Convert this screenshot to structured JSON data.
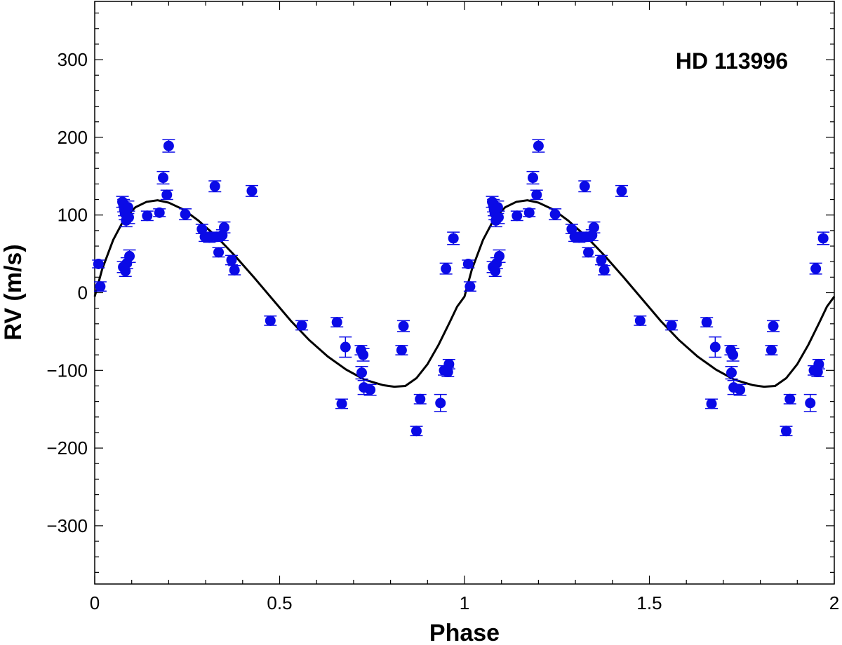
{
  "chart_data": {
    "type": "scatter",
    "annotation": "HD 113996",
    "xlabel": "Phase",
    "ylabel": "RV (m/s)",
    "xlim": [
      0,
      2
    ],
    "ylim": [
      -375,
      375
    ],
    "xticks": [
      0,
      0.5,
      1,
      1.5,
      2
    ],
    "xtick_labels": [
      "0",
      "0.5",
      "1",
      "1.5",
      "2"
    ],
    "yticks": [
      -300,
      -200,
      -100,
      0,
      100,
      200,
      300
    ],
    "ytick_labels": [
      "−300",
      "−200",
      "−100",
      "0",
      "100",
      "200",
      "300"
    ],
    "grid": false,
    "legend": "none",
    "colors": {
      "points": "#0a0ae6",
      "errorbars": "#0a0ae6",
      "model": "#000000"
    },
    "series": [
      {
        "kind": "observations",
        "points": [
          {
            "x": 0.01,
            "y": 37,
            "err": 5
          },
          {
            "x": 0.015,
            "y": 8,
            "err": 6
          },
          {
            "x": 0.075,
            "y": 117,
            "err": 7
          },
          {
            "x": 0.078,
            "y": 112,
            "err": 8
          },
          {
            "x": 0.08,
            "y": 107,
            "err": 8
          },
          {
            "x": 0.082,
            "y": 102,
            "err": 8
          },
          {
            "x": 0.085,
            "y": 93,
            "err": 8
          },
          {
            "x": 0.087,
            "y": 38,
            "err": 7
          },
          {
            "x": 0.077,
            "y": 33,
            "err": 7
          },
          {
            "x": 0.083,
            "y": 28,
            "err": 7
          },
          {
            "x": 0.09,
            "y": 110,
            "err": 8
          },
          {
            "x": 0.092,
            "y": 97,
            "err": 8
          },
          {
            "x": 0.094,
            "y": 47,
            "err": 8
          },
          {
            "x": 0.142,
            "y": 99,
            "err": 6
          },
          {
            "x": 0.175,
            "y": 103,
            "err": 5
          },
          {
            "x": 0.185,
            "y": 148,
            "err": 8
          },
          {
            "x": 0.195,
            "y": 126,
            "err": 6
          },
          {
            "x": 0.2,
            "y": 189,
            "err": 8
          },
          {
            "x": 0.245,
            "y": 101,
            "err": 7
          },
          {
            "x": 0.29,
            "y": 82,
            "err": 6
          },
          {
            "x": 0.298,
            "y": 72,
            "err": 6
          },
          {
            "x": 0.31,
            "y": 71,
            "err": 6
          },
          {
            "x": 0.325,
            "y": 137,
            "err": 7
          },
          {
            "x": 0.33,
            "y": 72,
            "err": 6
          },
          {
            "x": 0.335,
            "y": 52,
            "err": 6
          },
          {
            "x": 0.345,
            "y": 74,
            "err": 7
          },
          {
            "x": 0.35,
            "y": 84,
            "err": 7
          },
          {
            "x": 0.37,
            "y": 42,
            "err": 6
          },
          {
            "x": 0.378,
            "y": 29,
            "err": 6
          },
          {
            "x": 0.425,
            "y": 131,
            "err": 7
          },
          {
            "x": 0.475,
            "y": -36,
            "err": 6
          },
          {
            "x": 0.56,
            "y": -42,
            "err": 6
          },
          {
            "x": 0.655,
            "y": -38,
            "err": 6
          },
          {
            "x": 0.668,
            "y": -143,
            "err": 6
          },
          {
            "x": 0.678,
            "y": -70,
            "err": 13
          },
          {
            "x": 0.72,
            "y": -74,
            "err": 6
          },
          {
            "x": 0.722,
            "y": -103,
            "err": 8
          },
          {
            "x": 0.726,
            "y": -80,
            "err": 8
          },
          {
            "x": 0.728,
            "y": -122,
            "err": 9
          },
          {
            "x": 0.745,
            "y": -125,
            "err": 7
          },
          {
            "x": 0.83,
            "y": -74,
            "err": 6
          },
          {
            "x": 0.835,
            "y": -43,
            "err": 7
          },
          {
            "x": 0.87,
            "y": -178,
            "err": 6
          },
          {
            "x": 0.88,
            "y": -137,
            "err": 6
          },
          {
            "x": 0.935,
            "y": -142,
            "err": 11
          },
          {
            "x": 0.945,
            "y": -100,
            "err": 6
          },
          {
            "x": 0.95,
            "y": 31,
            "err": 7
          },
          {
            "x": 0.955,
            "y": -102,
            "err": 6
          },
          {
            "x": 0.958,
            "y": -92,
            "err": 6
          },
          {
            "x": 0.97,
            "y": 70,
            "err": 8
          },
          {
            "x": 1.01,
            "y": 37,
            "err": 5
          },
          {
            "x": 1.015,
            "y": 8,
            "err": 6
          },
          {
            "x": 1.075,
            "y": 117,
            "err": 7
          },
          {
            "x": 1.078,
            "y": 112,
            "err": 8
          },
          {
            "x": 1.08,
            "y": 107,
            "err": 8
          },
          {
            "x": 1.082,
            "y": 102,
            "err": 8
          },
          {
            "x": 1.085,
            "y": 93,
            "err": 8
          },
          {
            "x": 1.087,
            "y": 38,
            "err": 7
          },
          {
            "x": 1.077,
            "y": 33,
            "err": 7
          },
          {
            "x": 1.083,
            "y": 28,
            "err": 7
          },
          {
            "x": 1.09,
            "y": 110,
            "err": 8
          },
          {
            "x": 1.092,
            "y": 97,
            "err": 8
          },
          {
            "x": 1.094,
            "y": 47,
            "err": 8
          },
          {
            "x": 1.142,
            "y": 99,
            "err": 6
          },
          {
            "x": 1.175,
            "y": 103,
            "err": 5
          },
          {
            "x": 1.185,
            "y": 148,
            "err": 8
          },
          {
            "x": 1.195,
            "y": 126,
            "err": 6
          },
          {
            "x": 1.2,
            "y": 189,
            "err": 8
          },
          {
            "x": 1.245,
            "y": 101,
            "err": 7
          },
          {
            "x": 1.29,
            "y": 82,
            "err": 6
          },
          {
            "x": 1.298,
            "y": 72,
            "err": 6
          },
          {
            "x": 1.31,
            "y": 71,
            "err": 6
          },
          {
            "x": 1.325,
            "y": 137,
            "err": 7
          },
          {
            "x": 1.33,
            "y": 72,
            "err": 6
          },
          {
            "x": 1.335,
            "y": 52,
            "err": 6
          },
          {
            "x": 1.345,
            "y": 74,
            "err": 7
          },
          {
            "x": 1.35,
            "y": 84,
            "err": 7
          },
          {
            "x": 1.37,
            "y": 42,
            "err": 6
          },
          {
            "x": 1.378,
            "y": 29,
            "err": 6
          },
          {
            "x": 1.425,
            "y": 131,
            "err": 7
          },
          {
            "x": 1.475,
            "y": -36,
            "err": 6
          },
          {
            "x": 1.56,
            "y": -42,
            "err": 6
          },
          {
            "x": 1.655,
            "y": -38,
            "err": 6
          },
          {
            "x": 1.668,
            "y": -143,
            "err": 6
          },
          {
            "x": 1.678,
            "y": -70,
            "err": 13
          },
          {
            "x": 1.72,
            "y": -74,
            "err": 6
          },
          {
            "x": 1.722,
            "y": -103,
            "err": 8
          },
          {
            "x": 1.726,
            "y": -80,
            "err": 8
          },
          {
            "x": 1.728,
            "y": -122,
            "err": 9
          },
          {
            "x": 1.745,
            "y": -125,
            "err": 7
          },
          {
            "x": 1.83,
            "y": -74,
            "err": 6
          },
          {
            "x": 1.835,
            "y": -43,
            "err": 7
          },
          {
            "x": 1.87,
            "y": -178,
            "err": 6
          },
          {
            "x": 1.88,
            "y": -137,
            "err": 6
          },
          {
            "x": 1.935,
            "y": -142,
            "err": 11
          },
          {
            "x": 1.945,
            "y": -100,
            "err": 6
          },
          {
            "x": 1.95,
            "y": 31,
            "err": 7
          },
          {
            "x": 1.955,
            "y": -102,
            "err": 6
          },
          {
            "x": 1.958,
            "y": -92,
            "err": 6
          },
          {
            "x": 1.97,
            "y": 70,
            "err": 8
          }
        ]
      },
      {
        "kind": "model",
        "points": [
          {
            "x": 0.0,
            "y": -5
          },
          {
            "x": 0.02,
            "y": 30
          },
          {
            "x": 0.05,
            "y": 68
          },
          {
            "x": 0.08,
            "y": 95
          },
          {
            "x": 0.11,
            "y": 110
          },
          {
            "x": 0.14,
            "y": 117
          },
          {
            "x": 0.17,
            "y": 119
          },
          {
            "x": 0.2,
            "y": 116
          },
          {
            "x": 0.24,
            "y": 107
          },
          {
            "x": 0.28,
            "y": 93
          },
          {
            "x": 0.33,
            "y": 72
          },
          {
            "x": 0.38,
            "y": 47
          },
          {
            "x": 0.43,
            "y": 20
          },
          {
            "x": 0.48,
            "y": -8
          },
          {
            "x": 0.53,
            "y": -36
          },
          {
            "x": 0.58,
            "y": -61
          },
          {
            "x": 0.63,
            "y": -82
          },
          {
            "x": 0.68,
            "y": -99
          },
          {
            "x": 0.73,
            "y": -112
          },
          {
            "x": 0.78,
            "y": -119
          },
          {
            "x": 0.81,
            "y": -121
          },
          {
            "x": 0.84,
            "y": -120
          },
          {
            "x": 0.87,
            "y": -110
          },
          {
            "x": 0.9,
            "y": -92
          },
          {
            "x": 0.93,
            "y": -67
          },
          {
            "x": 0.96,
            "y": -38
          },
          {
            "x": 0.98,
            "y": -18
          },
          {
            "x": 1.0,
            "y": -5
          },
          {
            "x": 1.02,
            "y": 30
          },
          {
            "x": 1.05,
            "y": 68
          },
          {
            "x": 1.08,
            "y": 95
          },
          {
            "x": 1.11,
            "y": 110
          },
          {
            "x": 1.14,
            "y": 117
          },
          {
            "x": 1.17,
            "y": 119
          },
          {
            "x": 1.2,
            "y": 116
          },
          {
            "x": 1.24,
            "y": 107
          },
          {
            "x": 1.28,
            "y": 93
          },
          {
            "x": 1.33,
            "y": 72
          },
          {
            "x": 1.38,
            "y": 47
          },
          {
            "x": 1.43,
            "y": 20
          },
          {
            "x": 1.48,
            "y": -8
          },
          {
            "x": 1.53,
            "y": -36
          },
          {
            "x": 1.58,
            "y": -61
          },
          {
            "x": 1.63,
            "y": -82
          },
          {
            "x": 1.68,
            "y": -99
          },
          {
            "x": 1.73,
            "y": -112
          },
          {
            "x": 1.78,
            "y": -119
          },
          {
            "x": 1.81,
            "y": -121
          },
          {
            "x": 1.84,
            "y": -120
          },
          {
            "x": 1.87,
            "y": -110
          },
          {
            "x": 1.9,
            "y": -92
          },
          {
            "x": 1.93,
            "y": -67
          },
          {
            "x": 1.96,
            "y": -38
          },
          {
            "x": 1.98,
            "y": -18
          },
          {
            "x": 2.0,
            "y": -5
          }
        ]
      }
    ]
  }
}
